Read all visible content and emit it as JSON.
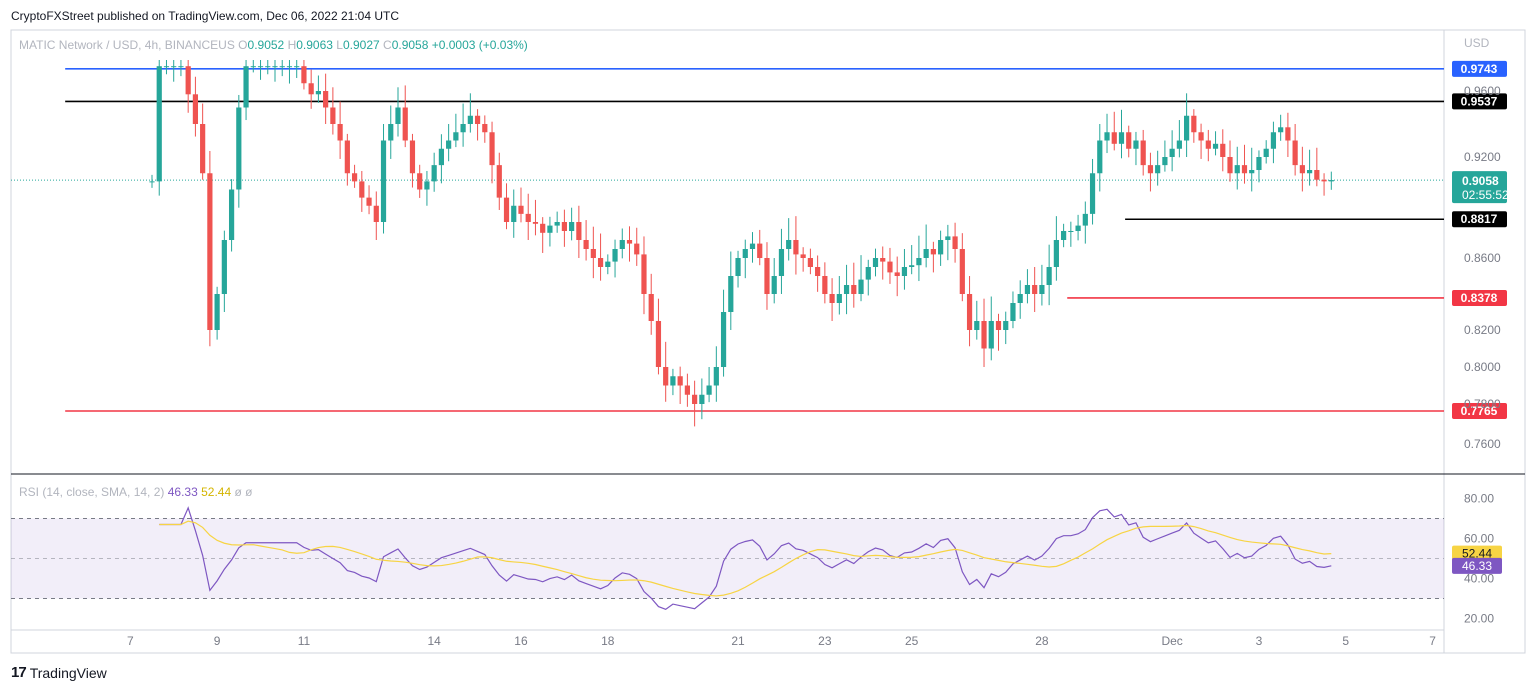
{
  "header": {
    "published": "CryptoFXStreet published on TradingView.com, Dec 06, 2022 21:04 UTC"
  },
  "legend": {
    "symbol": "MATIC Network / USD, 4h, BINANCEUS",
    "o_label": "O",
    "o": "0.9052",
    "h_label": "H",
    "h": "0.9063",
    "l_label": "L",
    "l": "0.9027",
    "c_label": "C",
    "c": "0.9058",
    "change": "+0.0003 (+0.03%)"
  },
  "currency": "USD",
  "rsi_legend": {
    "label": "RSI (14, close, SMA, 14, 2)",
    "rsi": "46.33",
    "sma": "52.44",
    "extra": "ø ø"
  },
  "brand": {
    "logo": "17",
    "name": "TradingView"
  },
  "colors": {
    "up": "#26a69a",
    "down": "#ef5350",
    "rsi": "#7e57c2",
    "rsi_sma": "#f7d444",
    "blue_line": "#2962ff",
    "red_line": "#f23645",
    "black_line": "#000000"
  },
  "chart_data": {
    "type": "candlestick",
    "price_ticks": [
      {
        "label": "0.9600",
        "value": 0.96
      },
      {
        "label": "0.9200",
        "value": 0.92
      },
      {
        "label": "0.8600",
        "value": 0.86
      },
      {
        "label": "0.8200",
        "value": 0.82
      },
      {
        "label": "0.8000",
        "value": 0.8
      },
      {
        "label": "0.7800",
        "value": 0.78
      },
      {
        "label": "0.7600",
        "value": 0.76
      }
    ],
    "x_ticks": [
      {
        "label": "7",
        "t": -3
      },
      {
        "label": "9",
        "t": 9
      },
      {
        "label": "11",
        "t": 21
      },
      {
        "label": "14",
        "t": 39
      },
      {
        "label": "16",
        "t": 51
      },
      {
        "label": "18",
        "t": 63
      },
      {
        "label": "21",
        "t": 81
      },
      {
        "label": "23",
        "t": 93
      },
      {
        "label": "25",
        "t": 105
      },
      {
        "label": "28",
        "t": 123
      },
      {
        "label": "Dec",
        "t": 141
      },
      {
        "label": "3",
        "t": 153
      },
      {
        "label": "5",
        "t": 165
      },
      {
        "label": "7",
        "t": 177
      }
    ],
    "current_price": {
      "label": "0.9058",
      "value": 0.9058,
      "countdown": "02:55:52"
    },
    "levels": [
      {
        "label": "0.9743",
        "value": 0.9743,
        "color": "#2962ff",
        "from_t": -12
      },
      {
        "label": "0.9537",
        "value": 0.9537,
        "color": "#000000",
        "from_t": -12
      },
      {
        "label": "0.8817",
        "value": 0.8817,
        "color": "#000000",
        "from_t": 134.5
      },
      {
        "label": "0.8378",
        "value": 0.8378,
        "color": "#f23645",
        "from_t": 126.5
      },
      {
        "label": "0.7765",
        "value": 0.7765,
        "color": "#f23645",
        "from_t": -12
      }
    ],
    "closes": [
      0.905,
      0.976,
      0.976,
      0.976,
      0.976,
      0.958,
      0.94,
      0.91,
      0.82,
      0.84,
      0.87,
      0.9,
      0.95,
      0.976,
      0.976,
      0.976,
      0.976,
      0.976,
      0.976,
      0.976,
      0.976,
      0.965,
      0.958,
      0.96,
      0.95,
      0.94,
      0.93,
      0.91,
      0.905,
      0.895,
      0.89,
      0.88,
      0.93,
      0.94,
      0.95,
      0.93,
      0.91,
      0.9,
      0.905,
      0.915,
      0.925,
      0.93,
      0.935,
      0.94,
      0.945,
      0.94,
      0.935,
      0.915,
      0.895,
      0.88,
      0.89,
      0.885,
      0.88,
      0.879,
      0.874,
      0.878,
      0.88,
      0.875,
      0.88,
      0.87,
      0.865,
      0.86,
      0.855,
      0.858,
      0.865,
      0.87,
      0.868,
      0.862,
      0.84,
      0.825,
      0.8,
      0.79,
      0.795,
      0.79,
      0.785,
      0.78,
      0.785,
      0.79,
      0.8,
      0.83,
      0.85,
      0.86,
      0.865,
      0.868,
      0.86,
      0.84,
      0.85,
      0.865,
      0.87,
      0.862,
      0.86,
      0.855,
      0.85,
      0.84,
      0.835,
      0.84,
      0.845,
      0.84,
      0.848,
      0.855,
      0.86,
      0.858,
      0.852,
      0.85,
      0.855,
      0.856,
      0.86,
      0.865,
      0.862,
      0.87,
      0.872,
      0.865,
      0.84,
      0.82,
      0.825,
      0.81,
      0.825,
      0.82,
      0.825,
      0.835,
      0.84,
      0.845,
      0.84,
      0.845,
      0.855,
      0.87,
      0.875,
      0.875,
      0.878,
      0.885,
      0.91,
      0.93,
      0.935,
      0.928,
      0.935,
      0.925,
      0.93,
      0.915,
      0.91,
      0.915,
      0.92,
      0.925,
      0.93,
      0.945,
      0.935,
      0.93,
      0.925,
      0.928,
      0.92,
      0.91,
      0.915,
      0.91,
      0.912,
      0.92,
      0.925,
      0.935,
      0.938,
      0.93,
      0.915,
      0.91,
      0.912,
      0.906,
      0.905,
      0.9058
    ],
    "rsi_axis": [
      {
        "label": "80.00",
        "value": 80
      },
      {
        "label": "60.00",
        "value": 60
      },
      {
        "label": "40.00",
        "value": 40
      },
      {
        "label": "20.00",
        "value": 20
      }
    ],
    "rsi_band": [
      30,
      70
    ],
    "rsi_midline": 50,
    "rsi_current": {
      "label": "46.33",
      "value": 46.33
    },
    "rsi_sma_current": {
      "label": "52.44",
      "value": 52.44
    }
  }
}
